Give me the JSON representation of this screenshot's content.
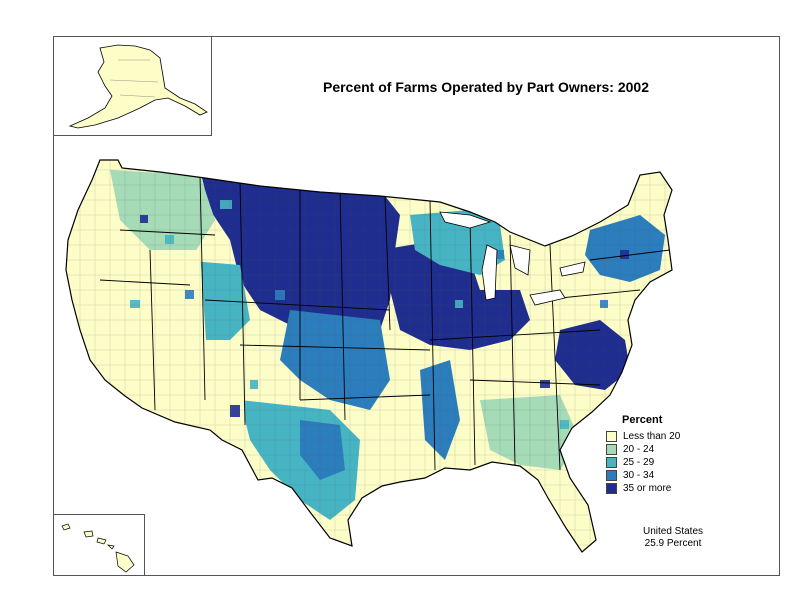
{
  "map": {
    "title": "Percent of Farms Operated by Part Owners:  2002",
    "legend": {
      "title": "Percent",
      "classes": [
        {
          "label": "Less than 20",
          "color": "#fdfdc8"
        },
        {
          "label": "20 - 24",
          "color": "#a6dbb8"
        },
        {
          "label": "25 - 29",
          "color": "#46b4c3"
        },
        {
          "label": "30 - 34",
          "color": "#2c7dbc"
        },
        {
          "label": "35 or more",
          "color": "#1f2d8e"
        }
      ]
    },
    "summary": {
      "line1": "United States",
      "line2": "25.9 Percent"
    }
  }
}
